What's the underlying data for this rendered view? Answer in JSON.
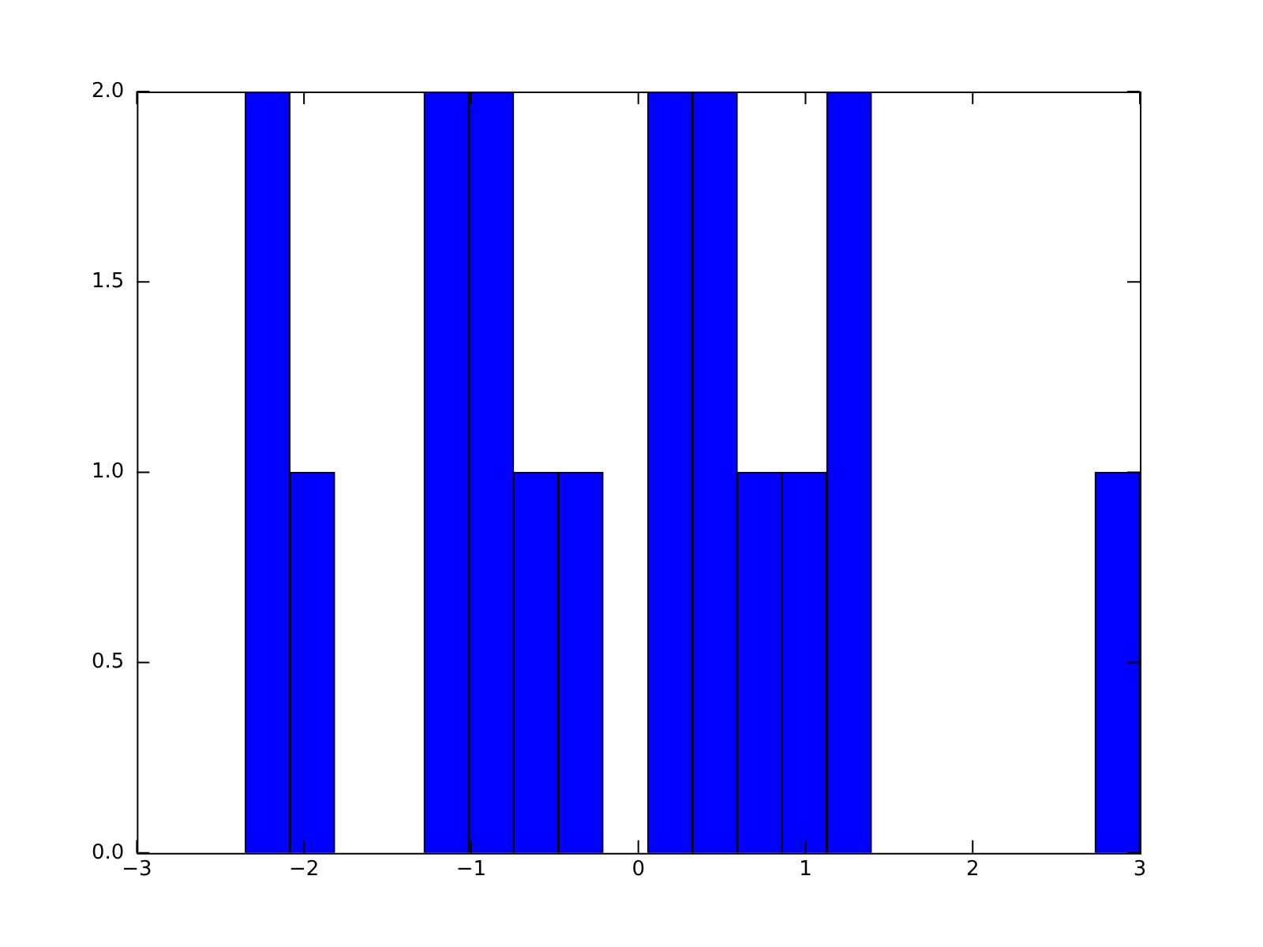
{
  "chart_data": {
    "type": "histogram",
    "bins": [
      -2.352,
      -2.084,
      -1.817,
      -1.549,
      -1.282,
      -1.014,
      -0.746,
      -0.479,
      -0.211,
      0.056,
      0.324,
      0.592,
      0.859,
      1.127,
      1.394,
      1.662,
      1.93,
      2.197,
      2.465,
      2.732,
      3.0
    ],
    "values": [
      2,
      1,
      0,
      0,
      2,
      2,
      1,
      1,
      0,
      2,
      2,
      1,
      1,
      2,
      0,
      0,
      0,
      0,
      0,
      1
    ],
    "color": "#0000ff",
    "xlim": [
      -3,
      3
    ],
    "xticks": [
      {
        "value": -3,
        "label": "−3"
      },
      {
        "value": -2,
        "label": "−2"
      },
      {
        "value": -1,
        "label": "−1"
      },
      0,
      1,
      2,
      3
    ],
    "ylim": [
      0,
      2
    ],
    "yticks": [
      {
        "value": 0,
        "label": "0.0"
      },
      {
        "value": 0.5,
        "label": "0.5"
      },
      {
        "value": 1,
        "label": "1.0"
      },
      {
        "value": 1.5,
        "label": "1.5"
      },
      {
        "value": 2,
        "label": "2.0"
      }
    ]
  }
}
